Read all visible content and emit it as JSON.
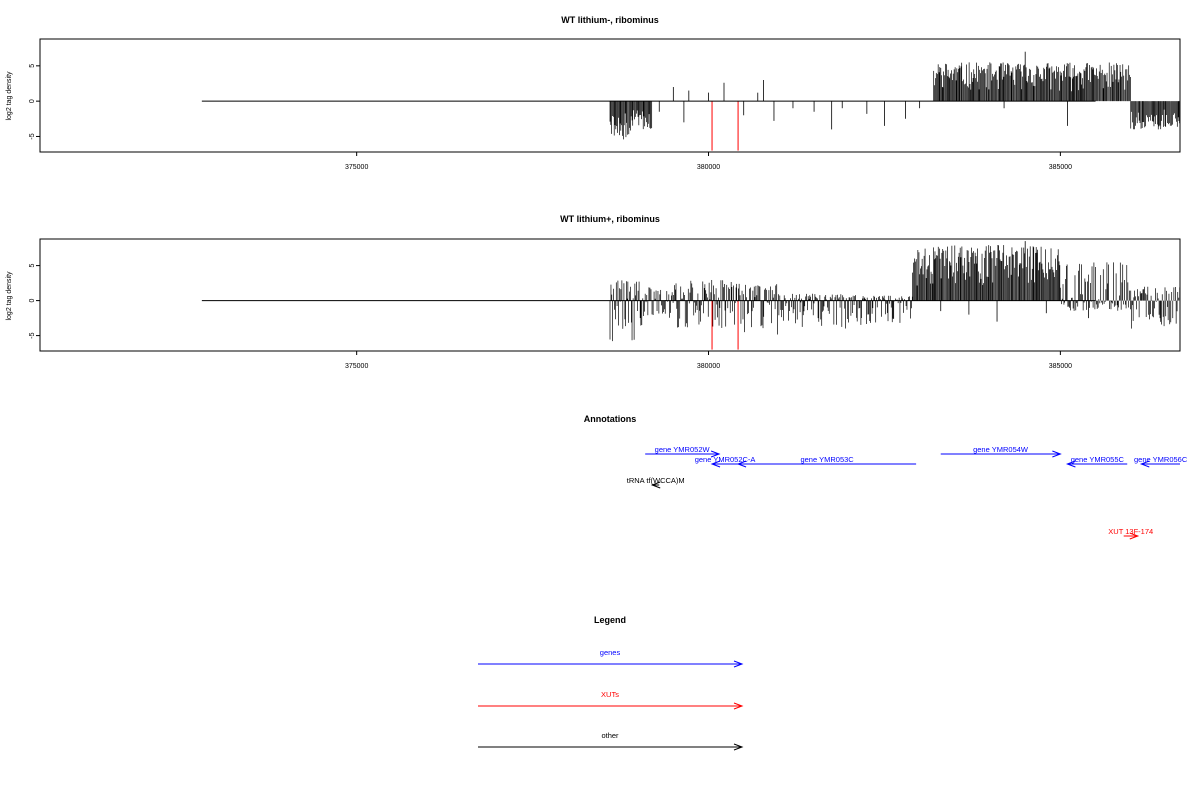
{
  "chart_data": [
    {
      "type": "bar",
      "title": "WT lithium-, ribominus",
      "ylabel": "log2 tag density",
      "xlim": [
        370500,
        386700
      ],
      "ylim": [
        -7.2,
        8.8
      ],
      "xticks": [
        375000,
        380000,
        385000
      ],
      "yticks": [
        -5,
        0,
        5
      ],
      "baseline": [
        372800,
        385500
      ],
      "background_segments": [
        {
          "x0": 378600,
          "x1": 378900,
          "min": -5.5,
          "max": 0
        },
        {
          "x0": 378900,
          "x1": 379200,
          "min": -4.0,
          "max": 0
        },
        {
          "x0": 383200,
          "x1": 386000,
          "min": 0,
          "max": 5.5
        },
        {
          "x0": 386000,
          "x1": 386700,
          "min": -4.0,
          "max": 0
        }
      ],
      "highlight_bars": [
        {
          "x": 380050,
          "y": -7.0
        },
        {
          "x": 380420,
          "y": -7.0
        }
      ],
      "sparse_bars": [
        {
          "x": 379500,
          "y": 2.0
        },
        {
          "x": 379720,
          "y": 1.5
        },
        {
          "x": 380000,
          "y": 1.2
        },
        {
          "x": 380220,
          "y": 2.6
        },
        {
          "x": 380700,
          "y": 1.2
        },
        {
          "x": 380780,
          "y": 3.0
        },
        {
          "x": 379300,
          "y": -1.5
        },
        {
          "x": 379650,
          "y": -3.0
        },
        {
          "x": 380500,
          "y": -2.0
        },
        {
          "x": 380930,
          "y": -2.8
        },
        {
          "x": 381200,
          "y": -1.0
        },
        {
          "x": 381500,
          "y": -1.5
        },
        {
          "x": 381750,
          "y": -4.0
        },
        {
          "x": 381900,
          "y": -1.0
        },
        {
          "x": 382250,
          "y": -1.8
        },
        {
          "x": 382500,
          "y": -3.5
        },
        {
          "x": 382800,
          "y": -2.5
        },
        {
          "x": 383000,
          "y": -1.0
        },
        {
          "x": 384200,
          "y": -1.0
        },
        {
          "x": 384500,
          "y": 7.0
        },
        {
          "x": 385100,
          "y": -3.5
        }
      ]
    },
    {
      "type": "bar",
      "title": "WT lithium+, ribominus",
      "ylabel": "log2 tag density",
      "xlim": [
        370500,
        386700
      ],
      "ylim": [
        -7.2,
        8.8
      ],
      "xticks": [
        375000,
        380000,
        385000
      ],
      "yticks": [
        -5,
        0,
        5
      ],
      "baseline": [
        372800,
        385500
      ],
      "background_segments": [
        {
          "x0": 378600,
          "x1": 379100,
          "min": -6.0,
          "max": 3.0
        },
        {
          "x0": 379100,
          "x1": 379500,
          "min": -2.5,
          "max": 2.0
        },
        {
          "x0": 379500,
          "x1": 380400,
          "min": -4.0,
          "max": 3.0
        },
        {
          "x0": 380400,
          "x1": 381000,
          "min": -5.0,
          "max": 2.5
        },
        {
          "x0": 381000,
          "x1": 382000,
          "min": -4.0,
          "max": 1.0
        },
        {
          "x0": 382000,
          "x1": 382900,
          "min": -3.5,
          "max": 0.8
        },
        {
          "x0": 382900,
          "x1": 385000,
          "min": 0,
          "max": 8.0
        },
        {
          "x0": 385000,
          "x1": 386000,
          "min": -1.5,
          "max": 5.5
        },
        {
          "x0": 386000,
          "x1": 386700,
          "min": -4.0,
          "max": 2.0
        }
      ],
      "highlight_bars": [
        {
          "x": 380050,
          "y": -7.0
        },
        {
          "x": 380420,
          "y": -7.0
        }
      ],
      "sparse_bars": [
        {
          "x": 384500,
          "y": 8.5
        },
        {
          "x": 383300,
          "y": -1.5
        },
        {
          "x": 383700,
          "y": -2.0
        },
        {
          "x": 384100,
          "y": -3.0
        },
        {
          "x": 384800,
          "y": -1.8
        },
        {
          "x": 385400,
          "y": -2.5
        }
      ]
    },
    {
      "type": "annotation_track",
      "title": "Annotations",
      "features": [
        {
          "label": "gene YMR052W",
          "x0": 379100,
          "x1": 380150,
          "strand": "+",
          "row": 0,
          "category": "genes"
        },
        {
          "label": "gene YMR052C-A",
          "x0": 380050,
          "x1": 380420,
          "strand": "-",
          "row": 1,
          "category": "genes"
        },
        {
          "label": "gene YMR053C",
          "x0": 380420,
          "x1": 382950,
          "strand": "-",
          "row": 1,
          "category": "genes"
        },
        {
          "label": "gene YMR054W",
          "x0": 383300,
          "x1": 385000,
          "strand": "+",
          "row": 0,
          "category": "genes"
        },
        {
          "label": "gene YMR055C",
          "x0": 385100,
          "x1": 385950,
          "strand": "-",
          "row": 1,
          "category": "genes"
        },
        {
          "label": "gene YMR056C",
          "x0": 386150,
          "x1": 386700,
          "strand": "-",
          "row": 1,
          "category": "genes"
        },
        {
          "label": "tRNA tf(WCCA)M",
          "x0": 379200,
          "x1": 379300,
          "strand": "-",
          "row": 2,
          "category": "other"
        },
        {
          "label": "XUT 13F-174",
          "x0": 385900,
          "x1": 386100,
          "strand": "+",
          "row": 3,
          "category": "XUTs"
        }
      ]
    },
    {
      "type": "legend",
      "title": "Legend",
      "entries": [
        {
          "label": "genes",
          "color": "#0000ff"
        },
        {
          "label": "XUTs",
          "color": "#ff0000"
        },
        {
          "label": "other",
          "color": "#000000"
        }
      ]
    }
  ],
  "colors": {
    "signal": "#000000",
    "highlight": "#ff0000",
    "genes": "#0000ff",
    "XUTs": "#ff0000",
    "other": "#000000"
  }
}
